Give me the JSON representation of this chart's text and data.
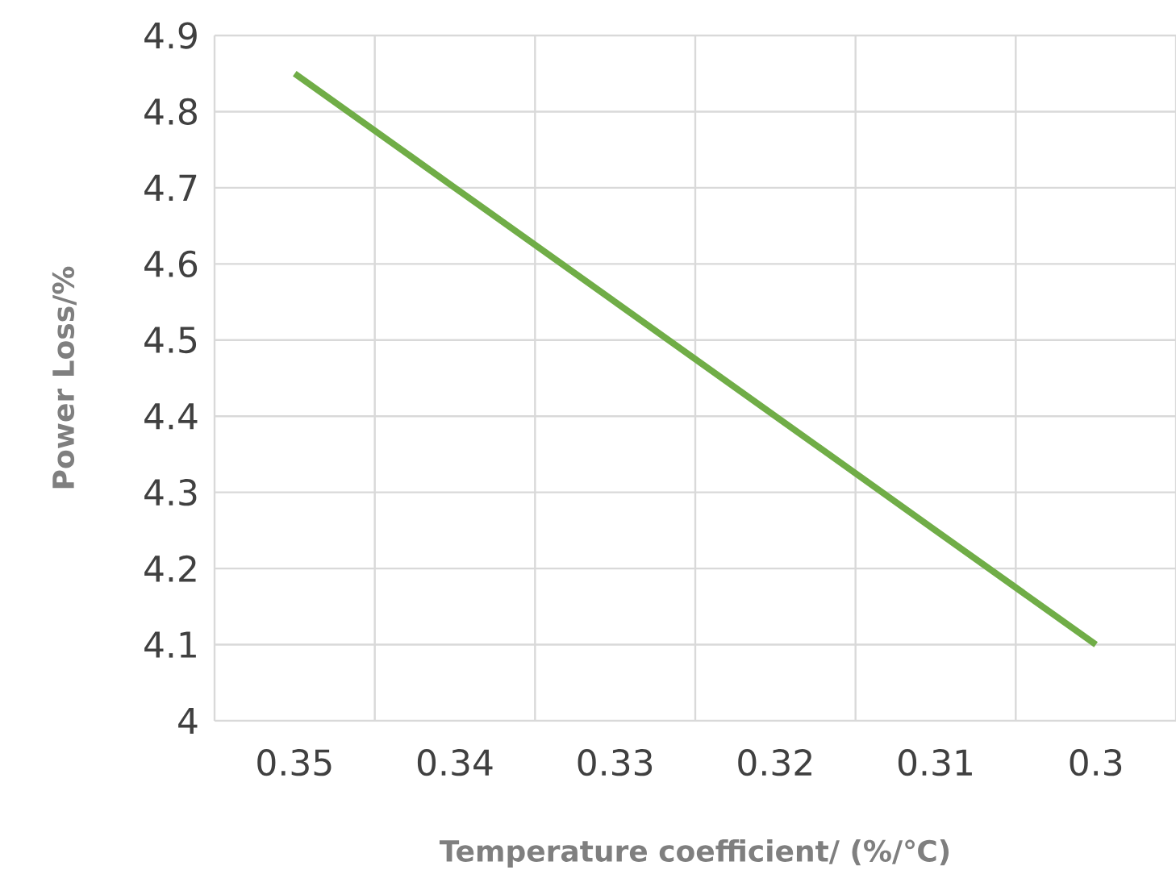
{
  "chart_data": {
    "type": "line",
    "xlabel": "Temperature coefficient/  (%/℃)",
    "ylabel": "Power Loss/%",
    "categories": [
      "0.35",
      "0.34",
      "0.33",
      "0.32",
      "0.31",
      "0.3"
    ],
    "series": [
      {
        "color": "#70ad47",
        "values": [
          4.85,
          4.7,
          4.55,
          4.4,
          4.25,
          4.1
        ]
      }
    ],
    "ylim": [
      4,
      4.9
    ],
    "yticks": [
      4,
      4.1,
      4.2,
      4.3,
      4.4,
      4.5,
      4.6,
      4.7,
      4.8,
      4.9
    ],
    "grid": true,
    "marker": "none",
    "line_style": "solid"
  }
}
